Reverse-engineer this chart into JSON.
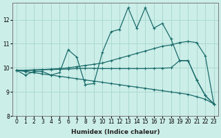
{
  "xlabel": "Humidex (Indice chaleur)",
  "ylabel": "",
  "xlim": [
    -0.5,
    23.5
  ],
  "ylim": [
    8.0,
    12.7
  ],
  "yticks": [
    8,
    9,
    10,
    11,
    12
  ],
  "xticks": [
    0,
    1,
    2,
    3,
    4,
    5,
    6,
    7,
    8,
    9,
    10,
    11,
    12,
    13,
    14,
    15,
    16,
    17,
    18,
    19,
    20,
    21,
    22,
    23
  ],
  "bg_color": "#cceee8",
  "grid_color": "#aad8d0",
  "line_color": "#1a6b6b",
  "lines": [
    {
      "x": [
        0,
        1,
        2,
        3,
        4,
        5,
        6,
        7,
        8,
        9,
        10,
        11,
        12,
        13,
        14,
        15,
        16,
        17,
        18,
        19,
        20,
        21,
        22,
        23
      ],
      "y": [
        9.9,
        9.7,
        9.85,
        9.85,
        9.7,
        9.8,
        10.75,
        10.45,
        9.3,
        9.35,
        10.65,
        11.5,
        11.6,
        12.5,
        11.65,
        12.5,
        11.65,
        11.85,
        11.2,
        10.3,
        10.3,
        9.5,
        8.85,
        8.5
      ]
    },
    {
      "x": [
        0,
        1,
        2,
        3,
        4,
        5,
        6,
        7,
        8,
        9,
        10,
        11,
        12,
        13,
        14,
        15,
        16,
        17,
        18,
        19,
        20,
        21,
        22,
        23
      ],
      "y": [
        9.9,
        9.9,
        9.92,
        9.93,
        9.95,
        9.97,
        10.0,
        10.05,
        10.1,
        10.15,
        10.2,
        10.3,
        10.4,
        10.5,
        10.6,
        10.7,
        10.8,
        10.9,
        10.95,
        11.05,
        11.1,
        11.05,
        10.5,
        8.5
      ]
    },
    {
      "x": [
        0,
        1,
        2,
        3,
        4,
        5,
        6,
        7,
        8,
        9,
        10,
        11,
        12,
        13,
        14,
        15,
        16,
        17,
        18,
        19,
        20,
        21,
        22,
        23
      ],
      "y": [
        9.9,
        9.88,
        9.9,
        9.92,
        9.93,
        9.94,
        9.95,
        9.97,
        9.98,
        9.98,
        9.97,
        9.97,
        9.97,
        9.97,
        9.97,
        9.97,
        9.98,
        9.99,
        10.0,
        10.3,
        10.3,
        9.5,
        8.85,
        8.5
      ]
    },
    {
      "x": [
        0,
        1,
        2,
        3,
        4,
        5,
        6,
        7,
        8,
        9,
        10,
        11,
        12,
        13,
        14,
        15,
        16,
        17,
        18,
        19,
        20,
        21,
        22,
        23
      ],
      "y": [
        9.9,
        9.85,
        9.8,
        9.75,
        9.7,
        9.65,
        9.6,
        9.55,
        9.5,
        9.45,
        9.4,
        9.35,
        9.3,
        9.25,
        9.2,
        9.15,
        9.1,
        9.05,
        9.0,
        8.95,
        8.9,
        8.8,
        8.7,
        8.5
      ]
    }
  ]
}
